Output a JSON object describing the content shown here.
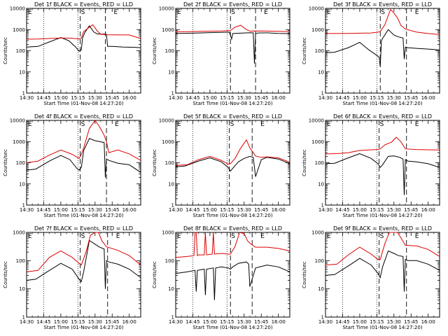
{
  "chart_data": {
    "type": "line",
    "x_tick_labels": [
      "14:30",
      "14:45",
      "15:00",
      "15:15",
      "15:30",
      "15:45",
      "16:00"
    ],
    "x_range_minutes_after_1430": [
      0,
      100
    ],
    "y_scale": "log",
    "ylabel": "Counts/sec",
    "xlabel": "Start Time (01-Nov-08 14:27:20)",
    "marker_labels": {
      "start": "S",
      "end": "E",
      "edge": "E"
    },
    "dotted_line_times": [
      "14:45",
      "15:15"
    ],
    "series_legend": {
      "black": "Events",
      "red": "LLD"
    },
    "panels": [
      {
        "title": "Det 1f BLACK = Events, RED = LLD",
        "y_tick_labels": [
          "1",
          "10",
          "100",
          "1000",
          "10000"
        ],
        "ylim": [
          1,
          10000
        ],
        "start_marker_time": "15:17",
        "end_marker_time": "15:39",
        "series": [
          {
            "name": "Events",
            "color": "#000000",
            "x": [
              0,
              10,
              20,
              30,
              37,
              43,
              46,
              48,
              49,
              51,
              55,
              59,
              62,
              65,
              68,
              70,
              71,
              75,
              85,
              95,
              100
            ],
            "y": [
              150,
              160,
              260,
              420,
              300,
              150,
              95,
              110,
              400,
              720,
              1500,
              760,
              620,
              610,
              610,
              600,
              160,
              160,
              150,
              145,
              140
            ]
          },
          {
            "name": "LLD",
            "color": "#dd0000",
            "x": [
              0,
              10,
              20,
              30,
              40,
              46,
              48,
              50,
              55,
              58,
              62,
              65,
              70,
              80,
              90,
              100
            ],
            "y": [
              350,
              360,
              380,
              400,
              390,
              360,
              400,
              800,
              1300,
              1700,
              850,
              600,
              570,
              560,
              560,
              380
            ]
          }
        ]
      },
      {
        "title": "Det 2f BLACK = Events, RED = LLD",
        "y_tick_labels": [
          "1",
          "10",
          "100",
          "1000",
          "10000"
        ],
        "ylim": [
          1,
          10000
        ],
        "start_marker_time": "15:18",
        "end_marker_time": "15:40",
        "series": [
          {
            "name": "Events",
            "color": "#000000",
            "x": [
              0,
              20,
              30,
              40,
              47,
              49,
              50,
              60,
              65,
              68,
              69,
              70,
              72,
              80,
              90,
              100
            ],
            "y": [
              650,
              690,
              720,
              740,
              760,
              360,
              650,
              690,
              710,
              700,
              25,
              650,
              690,
              700,
              660,
              640
            ]
          },
          {
            "name": "LLD",
            "color": "#dd0000",
            "x": [
              0,
              20,
              40,
              48,
              52,
              57,
              62,
              65,
              70,
              80,
              90,
              100
            ],
            "y": [
              780,
              820,
              860,
              900,
              1300,
              1600,
              1000,
              850,
              860,
              850,
              830,
              800
            ]
          }
        ]
      },
      {
        "title": "Det 3f BLACK = Events, RED = LLD",
        "y_tick_labels": [
          "1",
          "10",
          "100",
          "1000",
          "10000"
        ],
        "ylim": [
          1,
          10000
        ],
        "start_marker_time": "15:18",
        "end_marker_time": "15:41",
        "series": [
          {
            "name": "Events",
            "color": "#000000",
            "x": [
              0,
              8,
              20,
              30,
              38,
              45,
              47,
              48,
              49,
              50,
              55,
              60,
              64,
              68,
              69,
              70,
              72,
              80,
              90,
              100
            ],
            "y": [
              80,
              85,
              140,
              250,
              110,
              60,
              50,
              18,
              300,
              380,
              1000,
              550,
              450,
              400,
              40,
              150,
              140,
              130,
              120,
              110
            ]
          },
          {
            "name": "LLD",
            "color": "#dd0000",
            "x": [
              0,
              20,
              40,
              46,
              48,
              52,
              57,
              60,
              63,
              66,
              70,
              80,
              90,
              100
            ],
            "y": [
              650,
              660,
              690,
              760,
              800,
              1700,
              9000,
              6000,
              3600,
              1600,
              1050,
              760,
              650,
              580
            ]
          }
        ]
      },
      {
        "title": "Det 4f BLACK = Events, RED = LLD",
        "y_tick_labels": [
          "1",
          "10",
          "100",
          "1000",
          "10000"
        ],
        "ylim": [
          1,
          10000
        ],
        "start_marker_time": "15:17",
        "end_marker_time": "15:40",
        "series": [
          {
            "name": "Events",
            "color": "#000000",
            "x": [
              0,
              8,
              20,
              30,
              38,
              44,
              46,
              48,
              50,
              55,
              60,
              64,
              68,
              69,
              70,
              72,
              80,
              90,
              100
            ],
            "y": [
              45,
              50,
              120,
              220,
              140,
              55,
              45,
              60,
              380,
              1400,
              1100,
              1000,
              900,
              20,
              150,
              130,
              95,
              80,
              35
            ]
          },
          {
            "name": "LLD",
            "color": "#dd0000",
            "x": [
              0,
              10,
              20,
              30,
              40,
              46,
              48,
              50,
              55,
              60,
              64,
              68,
              70,
              72,
              80,
              90,
              100
            ],
            "y": [
              100,
              120,
              230,
              400,
              250,
              160,
              250,
              500,
              4200,
              10000,
              5000,
              2000,
              1000,
              300,
              400,
              260,
              130
            ]
          }
        ]
      },
      {
        "title": "Det 5f BLACK = Events, RED = LLD",
        "y_tick_labels": [
          "1",
          "10",
          "100",
          "1000",
          "10000"
        ],
        "ylim": [
          1,
          10000
        ],
        "start_marker_time": "15:17",
        "end_marker_time": "15:37",
        "series": [
          {
            "name": "Events",
            "color": "#000000",
            "x": [
              0,
              8,
              20,
              30,
              40,
              46,
              48,
              50,
              55,
              60,
              65,
              68,
              70,
              75,
              80,
              90,
              100
            ],
            "y": [
              65,
              70,
              120,
              170,
              110,
              60,
              40,
              55,
              110,
              160,
              200,
              180,
              22,
              140,
              180,
              150,
              90
            ]
          },
          {
            "name": "LLD",
            "color": "#dd0000",
            "x": [
              0,
              10,
              20,
              30,
              40,
              46,
              48,
              52,
              57,
              62,
              65,
              70,
              75,
              80,
              90,
              100
            ],
            "y": [
              75,
              80,
              140,
              200,
              130,
              85,
              90,
              160,
              500,
              1200,
              500,
              210,
              180,
              190,
              170,
              105
            ]
          }
        ]
      },
      {
        "title": "Det 6f BLACK = Events, RED = LLD",
        "y_tick_labels": [
          "1",
          "10",
          "100",
          "1000",
          "10000"
        ],
        "ylim": [
          1,
          10000
        ],
        "start_marker_time": "15:17",
        "end_marker_time": "15:41",
        "series": [
          {
            "name": "Events",
            "color": "#000000",
            "x": [
              0,
              8,
              20,
              30,
              40,
              46,
              48,
              50,
              55,
              60,
              65,
              68,
              69,
              70,
              72,
              80,
              90,
              100
            ],
            "y": [
              90,
              95,
              170,
              270,
              160,
              90,
              60,
              80,
              200,
              210,
              180,
              150,
              3,
              140,
              120,
              110,
              90,
              60
            ]
          },
          {
            "name": "LLD",
            "color": "#dd0000",
            "x": [
              0,
              10,
              20,
              30,
              40,
              46,
              48,
              52,
              58,
              62,
              66,
              70,
              80,
              90,
              100
            ],
            "y": [
              260,
              270,
              300,
              380,
              410,
              420,
              450,
              700,
              950,
              1600,
              1000,
              450,
              420,
              410,
              400
            ]
          }
        ]
      },
      {
        "title": "Det 7f BLACK = Events, RED = LLD",
        "y_tick_labels": [
          "1",
          "10",
          "100",
          "1000"
        ],
        "ylim": [
          1,
          1000
        ],
        "start_marker_time": "15:17",
        "end_marker_time": "15:41",
        "series": [
          {
            "name": "Events",
            "color": "#000000",
            "x": [
              0,
              8,
              20,
              30,
              40,
              46,
              48,
              50,
              55,
              60,
              64,
              68,
              69,
              70,
              72,
              80,
              90,
              100
            ],
            "y": [
              20,
              22,
              45,
              80,
              50,
              22,
              18,
              40,
              520,
              380,
              300,
              260,
              10,
              100,
              90,
              75,
              50,
              25
            ]
          },
          {
            "name": "LLD",
            "color": "#dd0000",
            "x": [
              0,
              10,
              20,
              30,
              40,
              46,
              48,
              52,
              56,
              60,
              63,
              66,
              70,
              80,
              90,
              100
            ],
            "y": [
              40,
              45,
              130,
              220,
              130,
              80,
              70,
              200,
              800,
              1000,
              1000,
              500,
              310,
              230,
              150,
              70
            ]
          }
        ]
      },
      {
        "title": "Det 8f BLACK = Events, RED = LLD",
        "y_tick_labels": [
          "1",
          "10",
          "100",
          "1000"
        ],
        "ylim": [
          1,
          1000
        ],
        "start_marker_time": "15:18",
        "end_marker_time": "15:37",
        "series": [
          {
            "name": "Events",
            "color": "#000000",
            "x": [
              0,
              10,
              17,
              18,
              19,
              25,
              26,
              27,
              33,
              34,
              35,
              40,
              46,
              48,
              50,
              55,
              62,
              64,
              65,
              70,
              80,
              90,
              100
            ],
            "y": [
              35,
              40,
              45,
              8,
              45,
              50,
              6,
              50,
              55,
              4,
              55,
              60,
              55,
              50,
              60,
              80,
              90,
              75,
              12,
              55,
              70,
              60,
              40
            ]
          },
          {
            "name": "LLD",
            "color": "#dd0000",
            "x": [
              0,
              10,
              16,
              17,
              18,
              19,
              20,
              25,
              26,
              27,
              32,
              33,
              34,
              40,
              46,
              48,
              52,
              56,
              60,
              63,
              66,
              70,
              80,
              90,
              100
            ],
            "y": [
              130,
              140,
              150,
              1000,
              1000,
              150,
              160,
              160,
              1000,
              160,
              170,
              1000,
              170,
              180,
              170,
              170,
              320,
              1000,
              900,
              500,
              380,
              300,
              300,
              270,
              220
            ]
          }
        ]
      },
      {
        "title": "Det 9f BLACK = Events, RED = LLD",
        "y_tick_labels": [
          "1",
          "10",
          "100",
          "1000"
        ],
        "ylim": [
          1,
          1000
        ],
        "start_marker_time": "15:17",
        "end_marker_time": "15:41",
        "series": [
          {
            "name": "Events",
            "color": "#000000",
            "x": [
              0,
              8,
              20,
              30,
              40,
              46,
              48,
              50,
              55,
              60,
              64,
              68,
              69,
              70,
              72,
              80,
              90,
              100
            ],
            "y": [
              30,
              32,
              65,
              120,
              70,
              35,
              25,
              60,
              220,
              180,
              150,
              140,
              8,
              110,
              100,
              100,
              75,
              45
            ]
          },
          {
            "name": "LLD",
            "color": "#dd0000",
            "x": [
              0,
              10,
              20,
              30,
              40,
              46,
              48,
              52,
              56,
              60,
              63,
              66,
              70,
              80,
              90,
              100
            ],
            "y": [
              70,
              75,
              160,
              300,
              170,
              110,
              110,
              400,
              1000,
              1000,
              1000,
              650,
              350,
              330,
              250,
              140
            ]
          }
        ]
      }
    ]
  }
}
